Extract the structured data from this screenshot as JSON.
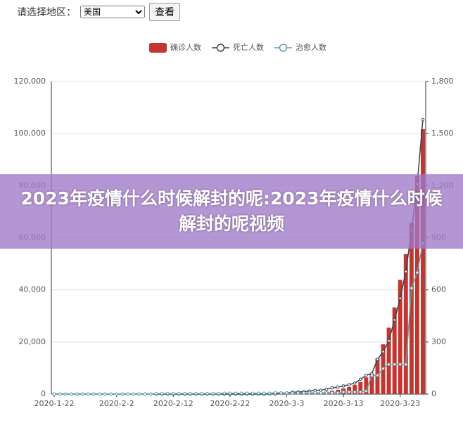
{
  "controls": {
    "region_label": "请选择地区：",
    "region_selected": "美国",
    "button": "查看"
  },
  "banner": {
    "text": "2023年疫情什么时候解封的呢:2023年疫情什么时候解封的呢视频"
  },
  "chart_data": {
    "type": "bar-line",
    "categories": [
      "2020-1-22",
      null,
      null,
      null,
      null,
      null,
      null,
      null,
      null,
      null,
      null,
      "2020-2-2",
      null,
      null,
      null,
      null,
      null,
      null,
      null,
      null,
      null,
      "2020-2-12",
      null,
      null,
      null,
      null,
      null,
      null,
      null,
      null,
      null,
      "2020-2-22",
      null,
      null,
      null,
      null,
      null,
      null,
      null,
      null,
      null,
      "2020-3-3",
      null,
      null,
      null,
      null,
      null,
      null,
      null,
      null,
      null,
      "2020-3-13",
      null,
      null,
      null,
      null,
      null,
      null,
      null,
      null,
      null,
      "2020-3-23",
      null,
      null,
      null,
      null
    ],
    "series": [
      {
        "name": "确诊人数",
        "type": "bar",
        "axis": "y",
        "color": "#c23531",
        "values": [
          1,
          1,
          2,
          2,
          5,
          5,
          5,
          5,
          5,
          7,
          8,
          8,
          11,
          11,
          11,
          11,
          11,
          11,
          11,
          11,
          12,
          12,
          13,
          13,
          13,
          13,
          13,
          13,
          13,
          13,
          15,
          15,
          15,
          51,
          51,
          57,
          58,
          60,
          68,
          74,
          98,
          118,
          149,
          217,
          262,
          402,
          518,
          583,
          959,
          1281,
          1663,
          2179,
          2726,
          3499,
          4632,
          6421,
          7786,
          13680,
          19101,
          25493,
          33276,
          43847,
          53740,
          65778,
          83836,
          101657
        ]
      },
      {
        "name": "死亡人数",
        "type": "line",
        "axis": "y2",
        "color": "#2f4554",
        "values": [
          0,
          0,
          0,
          0,
          0,
          0,
          0,
          0,
          0,
          0,
          0,
          0,
          0,
          0,
          0,
          0,
          0,
          0,
          0,
          0,
          0,
          0,
          0,
          0,
          0,
          0,
          0,
          0,
          0,
          0,
          0,
          0,
          0,
          0,
          0,
          0,
          0,
          0,
          1,
          1,
          6,
          7,
          11,
          12,
          14,
          17,
          21,
          22,
          28,
          36,
          40,
          47,
          54,
          63,
          85,
          108,
          118,
          200,
          244,
          307,
          427,
          552,
          706,
          942,
          1209,
          1581
        ]
      },
      {
        "name": "治愈人数",
        "type": "line",
        "axis": "y2",
        "color": "#61a0a8",
        "values": [
          0,
          0,
          0,
          0,
          0,
          0,
          0,
          0,
          0,
          0,
          0,
          0,
          0,
          0,
          0,
          0,
          0,
          0,
          3,
          3,
          3,
          3,
          3,
          3,
          3,
          3,
          3,
          3,
          3,
          3,
          5,
          5,
          5,
          5,
          5,
          5,
          5,
          5,
          5,
          7,
          7,
          7,
          7,
          7,
          7,
          7,
          7,
          7,
          7,
          7,
          8,
          12,
          12,
          12,
          12,
          17,
          106,
          108,
          147,
          171,
          171,
          171,
          171,
          610,
          700,
          869
        ]
      }
    ],
    "ylim": [
      0,
      120000
    ],
    "yticks": [
      0,
      {
        "value": 20000,
        "label": "20,000"
      },
      {
        "value": 40000,
        "label": "40,000"
      },
      {
        "value": 60000,
        "label": "60,000"
      },
      {
        "value": 80000,
        "label": "80,000"
      },
      {
        "value": 100000,
        "label": "100,000"
      },
      {
        "value": 120000,
        "label": "120,000"
      }
    ],
    "y2lim": [
      0,
      1800
    ],
    "y2ticks": [
      0,
      300,
      600,
      900,
      {
        "value": 1200,
        "label": "1,200"
      },
      {
        "value": 1500,
        "label": "1,500"
      },
      {
        "value": 1800,
        "label": "1,800"
      }
    ],
    "grid": true,
    "legend": "top"
  }
}
